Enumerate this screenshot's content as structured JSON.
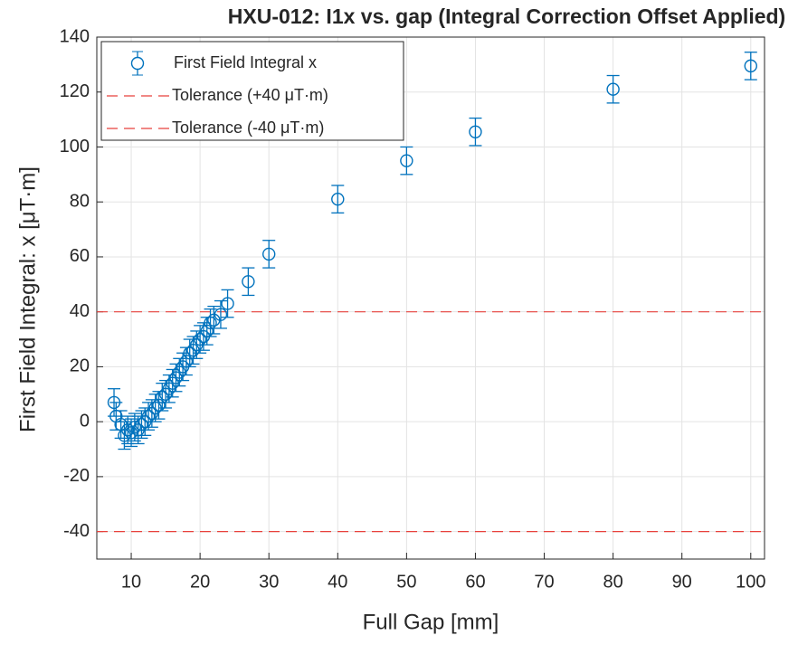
{
  "chart_data": {
    "type": "scatter",
    "title": "HXU-012: I1x vs. gap (Integral Correction Offset Applied)",
    "x_label": "Full Gap [mm]",
    "y_label": "First Field Integral: x [μT·m]",
    "x": [
      7.5,
      7.8,
      8.5,
      9,
      9.5,
      10,
      10.5,
      11,
      11.5,
      12,
      12.5,
      13,
      13.5,
      14,
      14.5,
      15,
      15.5,
      16,
      16.5,
      17,
      17.5,
      18,
      18.5,
      19,
      19.5,
      20,
      20.5,
      21,
      21.5,
      22,
      23,
      24,
      27,
      30,
      40,
      50,
      60,
      80,
      100
    ],
    "series": [
      {
        "name": "First Field Integral x",
        "color": "#0072bd",
        "values": [
          7,
          2,
          -1,
          -5,
          -3,
          -4,
          -2,
          -3,
          -1,
          0,
          2,
          3,
          5,
          6,
          9,
          10,
          12,
          14,
          16,
          18,
          20,
          22,
          25,
          26,
          28,
          30,
          31,
          33,
          36,
          37,
          39,
          43,
          51,
          61,
          81,
          95,
          105.5,
          121,
          129.5
        ],
        "errors": [
          5,
          5,
          5,
          5,
          5,
          5,
          5,
          5,
          5,
          5,
          5,
          5,
          5,
          5,
          5,
          5,
          5,
          5,
          5,
          5,
          5,
          5,
          5,
          5,
          5,
          5,
          5,
          5,
          5,
          5,
          5,
          5,
          5,
          5,
          5,
          5,
          5,
          5,
          5
        ]
      }
    ],
    "lines": [
      {
        "name": "Tolerance (+40 μT·m)",
        "color": "#e8413c",
        "value": 40
      },
      {
        "name": "Tolerance (-40 μT·m)",
        "color": "#e8413c",
        "value": -40
      }
    ],
    "xlim": [
      5,
      102
    ],
    "ylim": [
      -50,
      140
    ],
    "xticks": [
      10,
      20,
      30,
      40,
      50,
      60,
      70,
      80,
      90,
      100
    ],
    "yticks": [
      -40,
      -20,
      0,
      20,
      40,
      60,
      80,
      100,
      120,
      140
    ],
    "grid": true,
    "legend": "top-left"
  }
}
